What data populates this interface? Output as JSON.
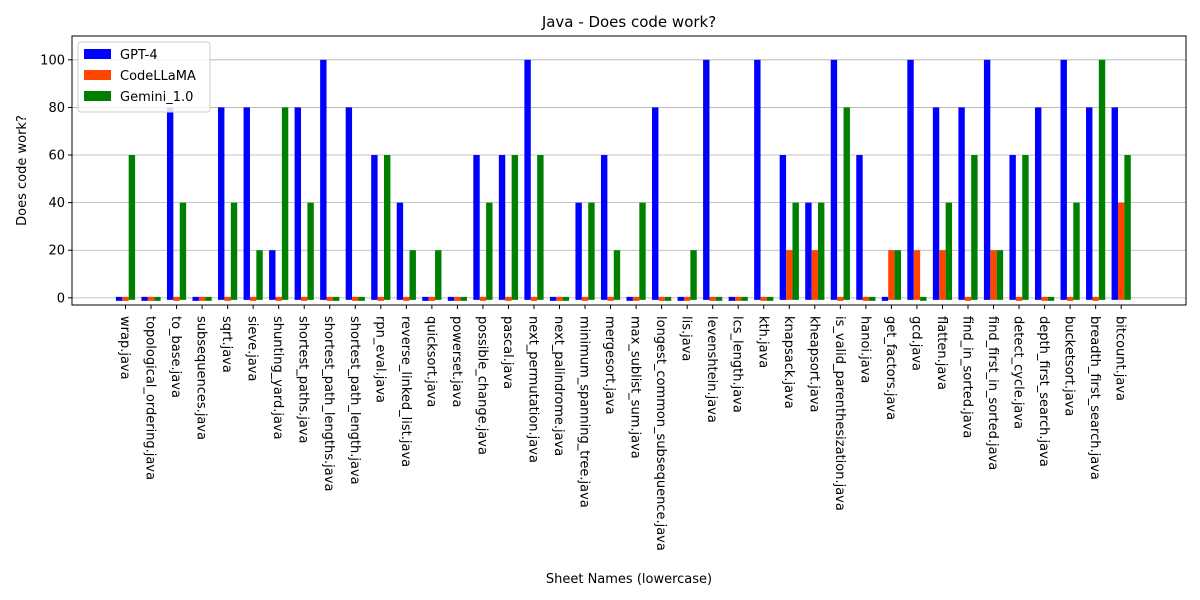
{
  "chart_data": {
    "type": "bar",
    "title": "Java - Does code work?",
    "xlabel": "Sheet Names (lowercase)",
    "ylabel": "Does code work?",
    "ylim": [
      -3,
      110
    ],
    "yticks": [
      0,
      20,
      40,
      60,
      80,
      100
    ],
    "grid": "horizontal",
    "legend_position": "top-left",
    "categories": [
      "wrap.java",
      "topological_ordering.java",
      "to_base.java",
      "subsequences.java",
      "sqrt.java",
      "sieve.java",
      "shunting_yard.java",
      "shortest_paths.java",
      "shortest_path_lengths.java",
      "shortest_path_length.java",
      "rpn_eval.java",
      "reverse_linked_list.java",
      "quicksort.java",
      "powerset.java",
      "possible_change.java",
      "pascal.java",
      "next_permutation.java",
      "next_palindrome.java",
      "minimum_spanning_tree.java",
      "mergesort.java",
      "max_sublist_sum.java",
      "longest_common_subsequence.java",
      "lis.java",
      "levenshtein.java",
      "lcs_length.java",
      "kth.java",
      "knapsack.java",
      "kheapsort.java",
      "is_valid_parenthesization.java",
      "hanoi.java",
      "get_factors.java",
      "gcd.java",
      "flatten.java",
      "find_in_sorted.java",
      "find_first_in_sorted.java",
      "detect_cycle.java",
      "depth_first_search.java",
      "bucketsort.java",
      "breadth_first_search.java",
      "bitcount.java"
    ],
    "series": [
      {
        "name": "GPT-4",
        "color": "#0000ff",
        "values": [
          0,
          0,
          80,
          0,
          80,
          80,
          20,
          80,
          100,
          80,
          60,
          40,
          0,
          0,
          60,
          60,
          100,
          0,
          40,
          60,
          0,
          80,
          0,
          100,
          0,
          100,
          60,
          40,
          100,
          60,
          0,
          100,
          80,
          80,
          100,
          60,
          80,
          100,
          80,
          80
        ]
      },
      {
        "name": "CodeLLaMA",
        "color": "#ff4500",
        "values": [
          0,
          0,
          0,
          0,
          0,
          0,
          0,
          0,
          0,
          0,
          0,
          0,
          0,
          0,
          0,
          0,
          0,
          0,
          0,
          0,
          0,
          0,
          0,
          0,
          0,
          0,
          20,
          20,
          0,
          0,
          20,
          20,
          20,
          0,
          20,
          0,
          0,
          0,
          0,
          40
        ]
      },
      {
        "name": "Gemini_1.0",
        "color": "#008000",
        "values": [
          60,
          0,
          40,
          0,
          40,
          20,
          80,
          40,
          0,
          0,
          60,
          20,
          20,
          0,
          40,
          60,
          60,
          0,
          40,
          20,
          40,
          0,
          20,
          0,
          0,
          0,
          40,
          40,
          80,
          0,
          20,
          0,
          40,
          60,
          20,
          60,
          0,
          40,
          100,
          60
        ]
      }
    ]
  }
}
